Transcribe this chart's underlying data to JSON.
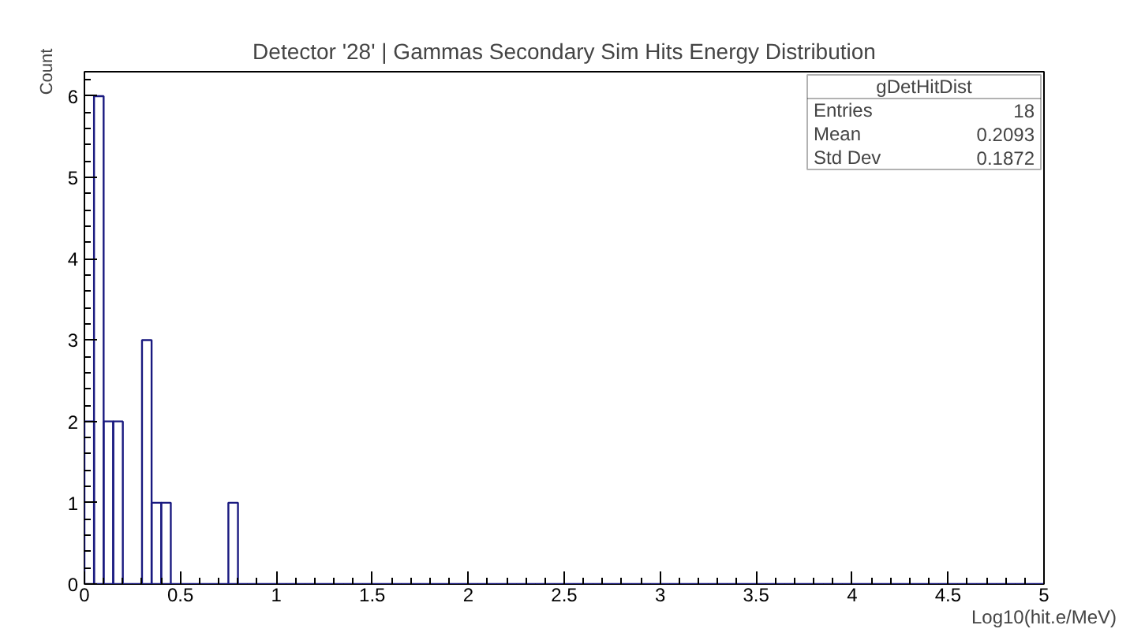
{
  "chart_data": {
    "type": "histogram",
    "title": "Detector '28' | Gammas Secondary Sim Hits Energy Distribution",
    "xlabel": "Log10(hit.e/MeV)",
    "ylabel": "Count",
    "color": "#1a1a80",
    "bins": [
      0,
      0.05,
      0.1,
      0.15,
      0.2,
      0.25,
      0.3,
      0.35,
      0.4,
      0.45,
      0.5,
      0.55,
      0.6,
      0.65,
      0.7,
      0.75,
      0.8,
      0.85,
      0.9,
      0.95,
      1,
      1.05,
      1.1,
      1.15,
      1.2,
      1.25,
      1.3,
      1.35,
      1.4,
      1.45,
      1.5,
      1.55,
      1.6,
      1.65,
      1.7,
      1.75,
      1.8,
      1.85,
      1.9,
      1.95,
      2,
      2.05,
      2.1,
      2.15,
      2.2,
      2.25,
      2.3,
      2.35,
      2.4,
      2.45,
      2.5,
      2.55,
      2.6,
      2.65,
      2.7,
      2.75,
      2.8,
      2.85,
      2.9,
      2.95,
      3,
      3.05,
      3.1,
      3.15,
      3.2,
      3.25,
      3.3,
      3.35,
      3.4,
      3.45,
      3.5,
      3.55,
      3.6,
      3.65,
      3.7,
      3.75,
      3.8,
      3.85,
      3.9,
      3.95,
      4,
      4.05,
      4.1,
      4.15,
      4.2,
      4.25,
      4.3,
      4.35,
      4.4,
      4.45,
      4.5,
      4.55,
      4.6,
      4.65,
      4.7,
      4.75,
      4.8,
      4.85,
      4.9,
      4.95,
      5
    ],
    "values": [
      2,
      6,
      2,
      2,
      0,
      0,
      3,
      1,
      1,
      0,
      0,
      0,
      0,
      0,
      0,
      1,
      0,
      0,
      0,
      0,
      0,
      0,
      0,
      0,
      0,
      0,
      0,
      0,
      0,
      0,
      0,
      0,
      0,
      0,
      0,
      0,
      0,
      0,
      0,
      0,
      0,
      0,
      0,
      0,
      0,
      0,
      0,
      0,
      0,
      0,
      0,
      0,
      0,
      0,
      0,
      0,
      0,
      0,
      0,
      0,
      0,
      0,
      0,
      0,
      0,
      0,
      0,
      0,
      0,
      0,
      0,
      0,
      0,
      0,
      0,
      0,
      0,
      0,
      0,
      0,
      0,
      0,
      0,
      0,
      0,
      0,
      0,
      0,
      0,
      0,
      0,
      0,
      0,
      0,
      0,
      0,
      0,
      0,
      0,
      0
    ],
    "xlim": [
      0,
      5
    ],
    "ylim": [
      0,
      6.3
    ],
    "xticks": [
      0,
      0.5,
      1,
      1.5,
      2,
      2.5,
      3,
      3.5,
      4,
      4.5,
      5
    ],
    "yticks": [
      0,
      1,
      2,
      3,
      4,
      5,
      6
    ],
    "grid": false,
    "annotations": [
      "gDetHitDist",
      "Entries",
      "18",
      "Mean",
      "0.2093",
      "Std Dev",
      "0.1872"
    ]
  }
}
